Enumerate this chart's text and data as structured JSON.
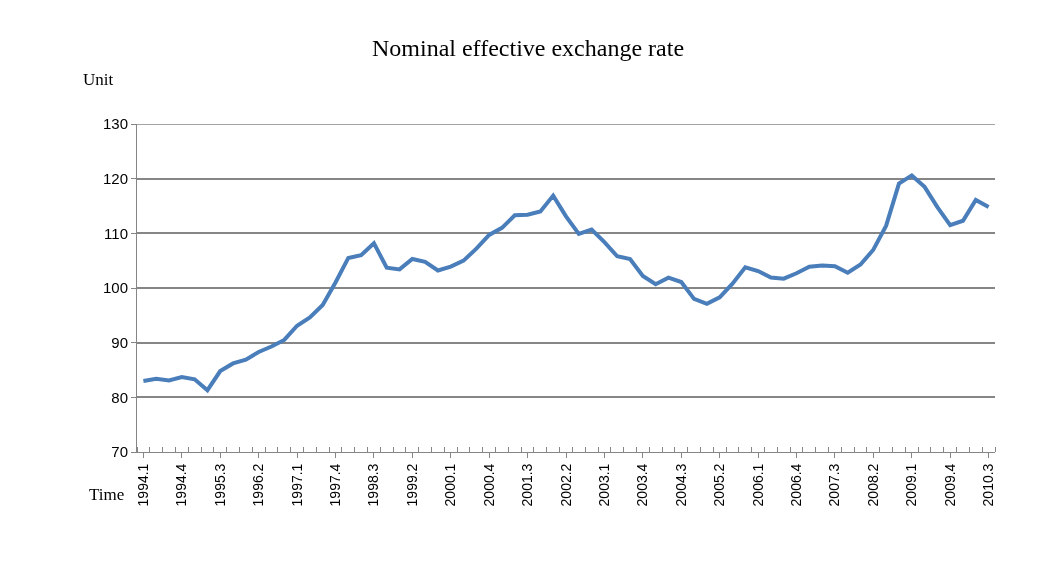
{
  "chart_data": {
    "type": "line",
    "title": "Nominal effective exchange rate",
    "xlabel": "Time",
    "ylabel": "Unit",
    "categories": [
      "1994.1",
      null,
      null,
      "1994.4",
      null,
      null,
      "1995.3",
      null,
      null,
      "1996.2",
      null,
      null,
      "1997.1",
      null,
      null,
      "1997.4",
      null,
      null,
      "1998.3",
      null,
      null,
      "1999.2",
      null,
      null,
      "2000.1",
      null,
      null,
      "2000.4",
      null,
      null,
      "2001.3",
      null,
      null,
      "2002.2",
      null,
      null,
      "2003.1",
      null,
      null,
      "2003.4",
      null,
      null,
      "2004.3",
      null,
      null,
      "2005.2",
      null,
      null,
      "2006.1",
      null,
      null,
      "2006.4",
      null,
      null,
      "2007.3",
      null,
      null,
      "2008.2",
      null,
      null,
      "2009.1",
      null,
      null,
      "2009.4",
      null,
      null,
      "2010.3"
    ],
    "series": [
      {
        "color": "#4a7ebb",
        "values": [
          83.0,
          83.4,
          83.1,
          83.7,
          83.3,
          81.3,
          84.8,
          86.2,
          86.9,
          88.3,
          89.3,
          90.5,
          93.1,
          94.6,
          96.9,
          101.0,
          105.5,
          106.0,
          108.2,
          103.7,
          103.4,
          105.3,
          104.8,
          103.2,
          103.9,
          105.0,
          107.2,
          109.7,
          111.0,
          113.3,
          113.4,
          114.0,
          116.9,
          113.1,
          109.9,
          110.7,
          108.4,
          105.8,
          105.3,
          102.2,
          100.7,
          101.9,
          101.1,
          98.0,
          97.1,
          98.3,
          100.8,
          103.8,
          103.1,
          101.9,
          101.7,
          102.7,
          103.9,
          104.1,
          104.0,
          102.8,
          104.3,
          107.0,
          111.4,
          119.1,
          120.6,
          118.5,
          114.8,
          111.5,
          112.3,
          116.1,
          114.8
        ]
      }
    ],
    "ylim": [
      70,
      130
    ],
    "yticks": [
      70,
      80,
      90,
      100,
      110,
      120,
      130
    ],
    "grid": "y",
    "marker": "none",
    "line_style": "solid"
  }
}
